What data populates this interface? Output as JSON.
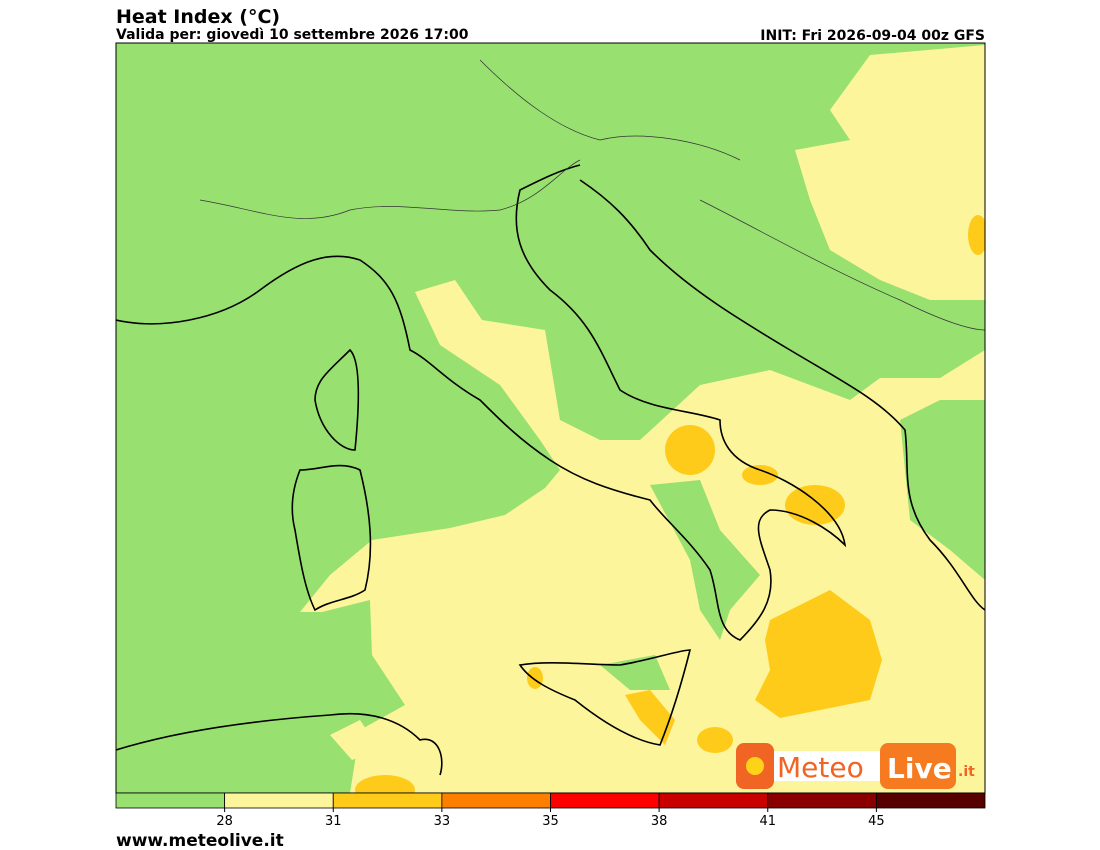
{
  "header": {
    "title": "Heat Index (°C)",
    "subtitle": "Valida per: giovedì 10 settembre 2026 17:00",
    "init": "INIT: Fri 2026-09-04 00z GFS"
  },
  "logo": {
    "meteo": "Meteo",
    "live": "Live",
    "suffix": ".it"
  },
  "colorbar": {
    "colors": [
      "#98e070",
      "#fdf59c",
      "#fecb1a",
      "#fd7f00",
      "#fe0000",
      "#c80000",
      "#8a0000",
      "#560000"
    ],
    "ticks": [
      "28",
      "31",
      "33",
      "35",
      "38",
      "41",
      "45"
    ]
  },
  "footer": {
    "website": "www.meteolive.it"
  }
}
